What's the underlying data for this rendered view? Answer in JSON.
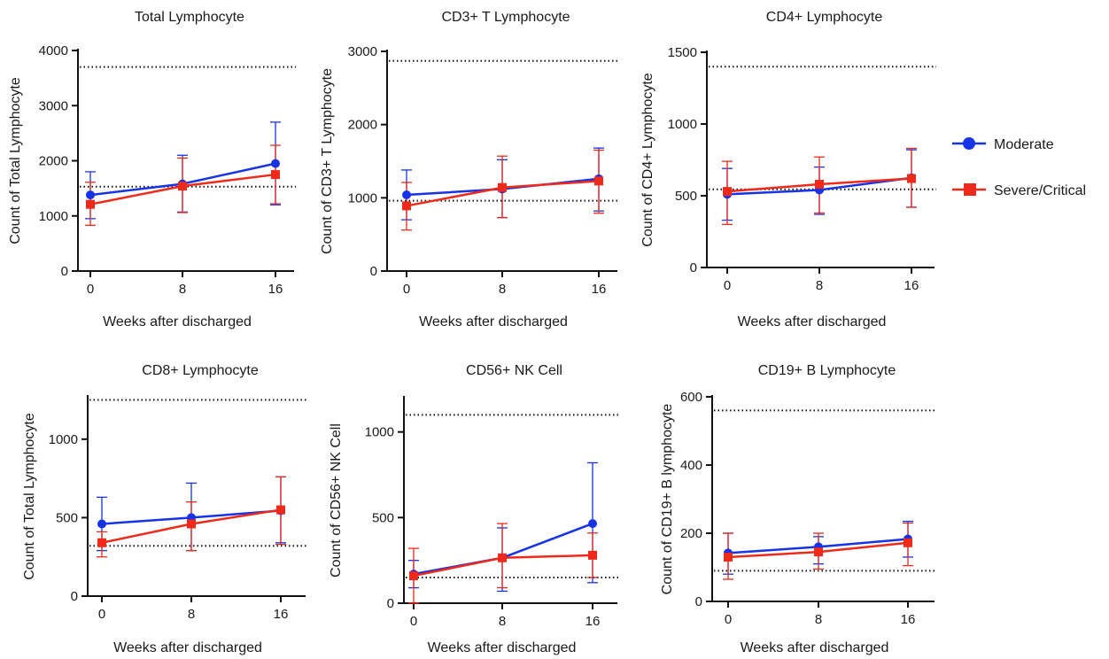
{
  "legend": {
    "position": "right",
    "items": [
      {
        "name": "Moderate",
        "color": "#1733e6",
        "marker": "circle"
      },
      {
        "name": "Severe/Critical",
        "color": "#ee2a1b",
        "marker": "square"
      }
    ]
  },
  "chart_data": [
    {
      "type": "line",
      "title": "Total Lymphocyte",
      "xlabel": "Weeks after discharged",
      "ylabel": "Count of Total Lymphocyte",
      "x": [
        0,
        8,
        16
      ],
      "ylim": [
        0,
        4000
      ],
      "yticks": [
        0,
        1000,
        2000,
        3000,
        4000
      ],
      "reference_lines": [
        3700,
        1530
      ],
      "series": [
        {
          "name": "Moderate",
          "values": [
            1380,
            1580,
            1950
          ],
          "err_low": [
            950,
            1070,
            1200
          ],
          "err_high": [
            1800,
            2100,
            2700
          ]
        },
        {
          "name": "Severe/Critical",
          "values": [
            1210,
            1540,
            1750
          ],
          "err_low": [
            830,
            1060,
            1220
          ],
          "err_high": [
            1610,
            2050,
            2280
          ]
        }
      ]
    },
    {
      "type": "line",
      "title": "CD3+ T Lymphocyte",
      "xlabel": "Weeks after discharged",
      "ylabel": "Count of CD3+ T Lymphocyte",
      "x": [
        0,
        8,
        16
      ],
      "ylim": [
        0,
        3000
      ],
      "yticks": [
        0,
        1000,
        2000,
        3000
      ],
      "reference_lines": [
        2870,
        960
      ],
      "series": [
        {
          "name": "Moderate",
          "values": [
            1040,
            1120,
            1260
          ],
          "err_low": [
            700,
            730,
            820
          ],
          "err_high": [
            1380,
            1520,
            1680
          ]
        },
        {
          "name": "Severe/Critical",
          "values": [
            890,
            1140,
            1230
          ],
          "err_low": [
            560,
            730,
            790
          ],
          "err_high": [
            1210,
            1570,
            1650
          ]
        }
      ]
    },
    {
      "type": "line",
      "title": "CD4+ Lymphocyte",
      "xlabel": "Weeks after discharged",
      "ylabel": "Count of CD4+ Lymphocyte",
      "x": [
        0,
        8,
        16
      ],
      "ylim": [
        0,
        1500
      ],
      "yticks": [
        0,
        500,
        1000,
        1500
      ],
      "reference_lines": [
        1400,
        545
      ],
      "series": [
        {
          "name": "Moderate",
          "values": [
            510,
            540,
            625
          ],
          "err_low": [
            330,
            370,
            420
          ],
          "err_high": [
            690,
            700,
            820
          ]
        },
        {
          "name": "Severe/Critical",
          "values": [
            530,
            580,
            620
          ],
          "err_low": [
            300,
            380,
            420
          ],
          "err_high": [
            740,
            770,
            830
          ]
        }
      ]
    },
    {
      "type": "line",
      "title": "CD8+ Lymphocyte",
      "xlabel": "Weeks after discharged",
      "ylabel": "Count of Total Lymphocyte",
      "x": [
        0,
        8,
        16
      ],
      "ylim": [
        0,
        1270
      ],
      "yticks": [
        0,
        500,
        1000
      ],
      "reference_lines": [
        1250,
        320
      ],
      "series": [
        {
          "name": "Moderate",
          "values": [
            460,
            500,
            545
          ],
          "err_low": [
            290,
            290,
            340
          ],
          "err_high": [
            630,
            720,
            760
          ]
        },
        {
          "name": "Severe/Critical",
          "values": [
            340,
            460,
            550
          ],
          "err_low": [
            250,
            290,
            330
          ],
          "err_high": [
            410,
            600,
            760
          ]
        }
      ]
    },
    {
      "type": "line",
      "title": "CD56+ NK Cell",
      "xlabel": "Weeks after discharged",
      "ylabel": "Count of CD56+ NK Cell",
      "x": [
        0,
        8,
        16
      ],
      "ylim": [
        0,
        1200
      ],
      "yticks": [
        0,
        500,
        1000
      ],
      "reference_lines": [
        1100,
        150
      ],
      "series": [
        {
          "name": "Moderate",
          "values": [
            170,
            265,
            465
          ],
          "err_low": [
            90,
            70,
            120
          ],
          "err_high": [
            250,
            440,
            820
          ]
        },
        {
          "name": "Severe/Critical",
          "values": [
            160,
            265,
            280
          ],
          "err_low": [
            0,
            90,
            150
          ],
          "err_high": [
            320,
            465,
            410
          ]
        }
      ]
    },
    {
      "type": "line",
      "title": "CD19+ B Lymphocyte",
      "xlabel": "Weeks after discharged",
      "ylabel": "Count of CD19+ B lymphocyte",
      "x": [
        0,
        8,
        16
      ],
      "ylim": [
        0,
        600
      ],
      "yticks": [
        0,
        200,
        400,
        600
      ],
      "reference_lines": [
        560,
        90
      ],
      "series": [
        {
          "name": "Moderate",
          "values": [
            142,
            160,
            183
          ],
          "err_low": [
            80,
            110,
            130
          ],
          "err_high": [
            200,
            190,
            235
          ]
        },
        {
          "name": "Severe/Critical",
          "values": [
            130,
            145,
            172
          ],
          "err_low": [
            65,
            95,
            105
          ],
          "err_high": [
            200,
            200,
            230
          ]
        }
      ]
    }
  ]
}
